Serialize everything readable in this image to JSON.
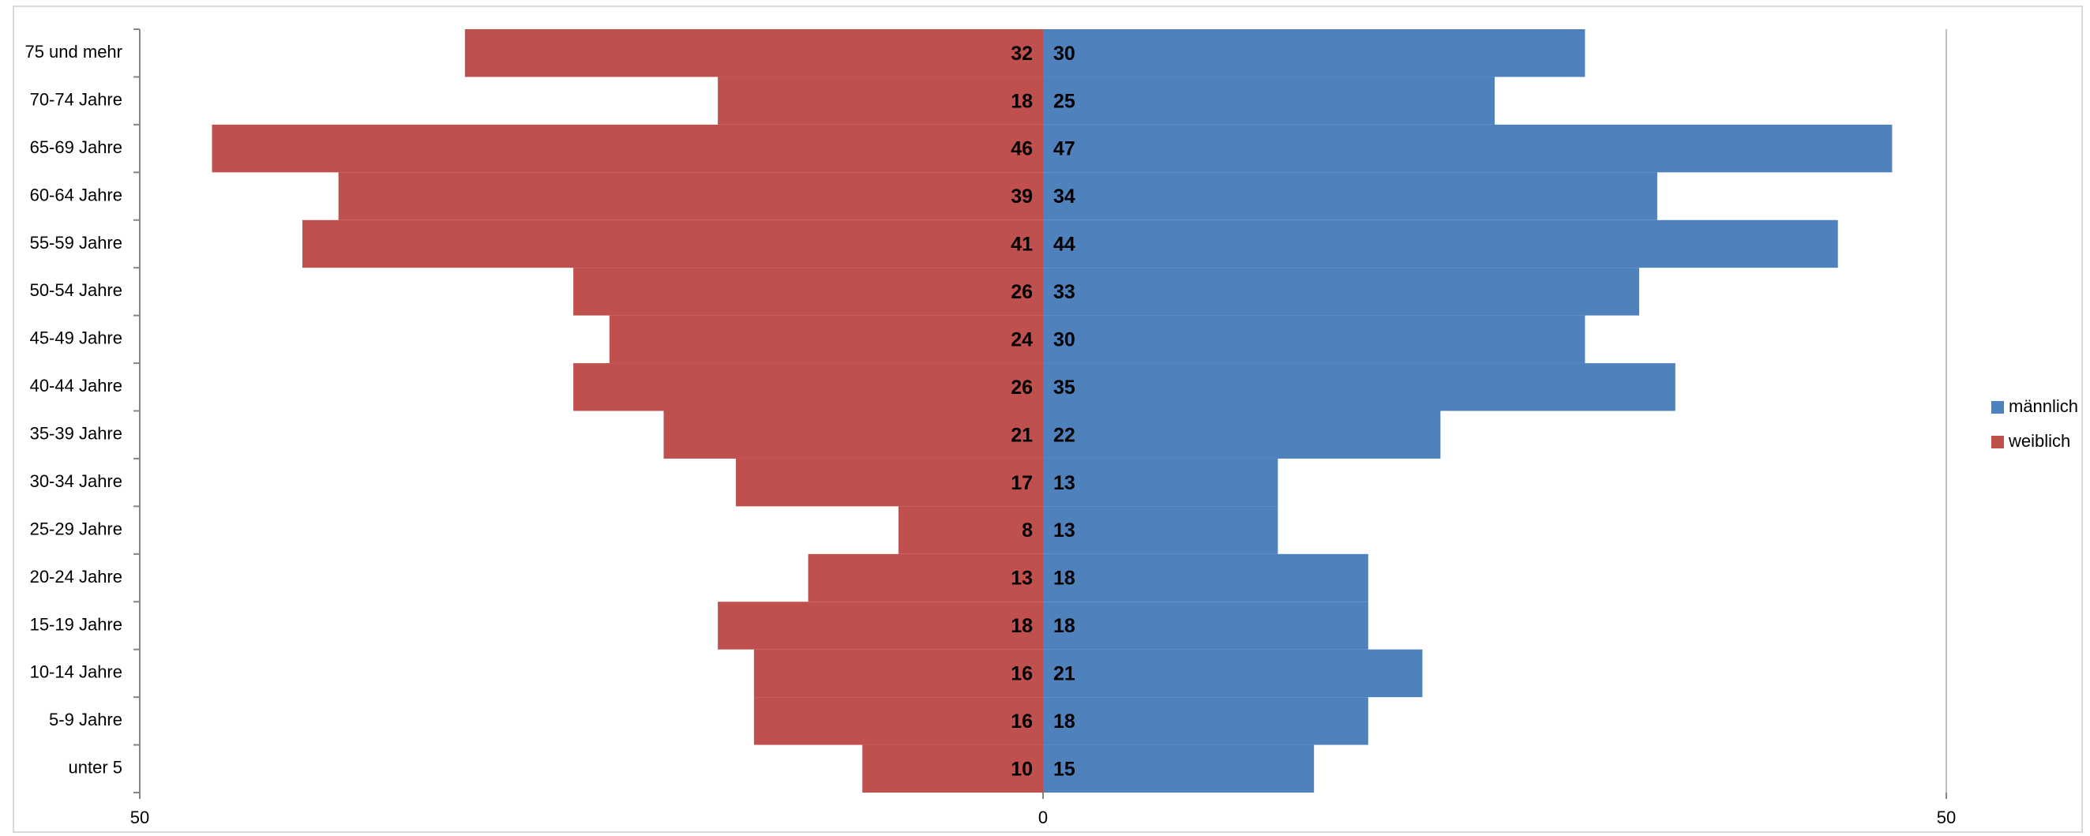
{
  "chart_data": {
    "type": "bar",
    "orientation": "horizontal",
    "stacked": false,
    "categories": [
      "75 und mehr",
      "70-74 Jahre",
      "65-69 Jahre",
      "60-64 Jahre",
      "55-59 Jahre",
      "50-54 Jahre",
      "45-49 Jahre",
      "40-44 Jahre",
      "35-39 Jahre",
      "30-34 Jahre",
      "25-29 Jahre",
      "20-24 Jahre",
      "15-19 Jahre",
      "10-14 Jahre",
      "5-9 Jahre",
      "unter 5"
    ],
    "series": [
      {
        "name": "männlich",
        "color": "#4f81bd",
        "values": [
          30,
          25,
          47,
          34,
          44,
          33,
          30,
          35,
          22,
          13,
          13,
          18,
          18,
          21,
          18,
          15
        ]
      },
      {
        "name": "weiblich",
        "color": "#c0504d",
        "values": [
          -32,
          -18,
          -46,
          -39,
          -41,
          -26,
          -24,
          -26,
          -21,
          -17,
          -8,
          -13,
          -18,
          -16,
          -16,
          -10
        ],
        "value_labels": [
          "32",
          "18",
          "46",
          "39",
          "41",
          "26",
          "24",
          "26",
          "21",
          "17",
          "8",
          "13",
          "18",
          "16",
          "16",
          "10"
        ]
      }
    ],
    "xlim": [
      -50,
      50
    ],
    "xticks": [
      {
        "value": -50,
        "label": "50"
      },
      0,
      50
    ],
    "legend": "right"
  }
}
